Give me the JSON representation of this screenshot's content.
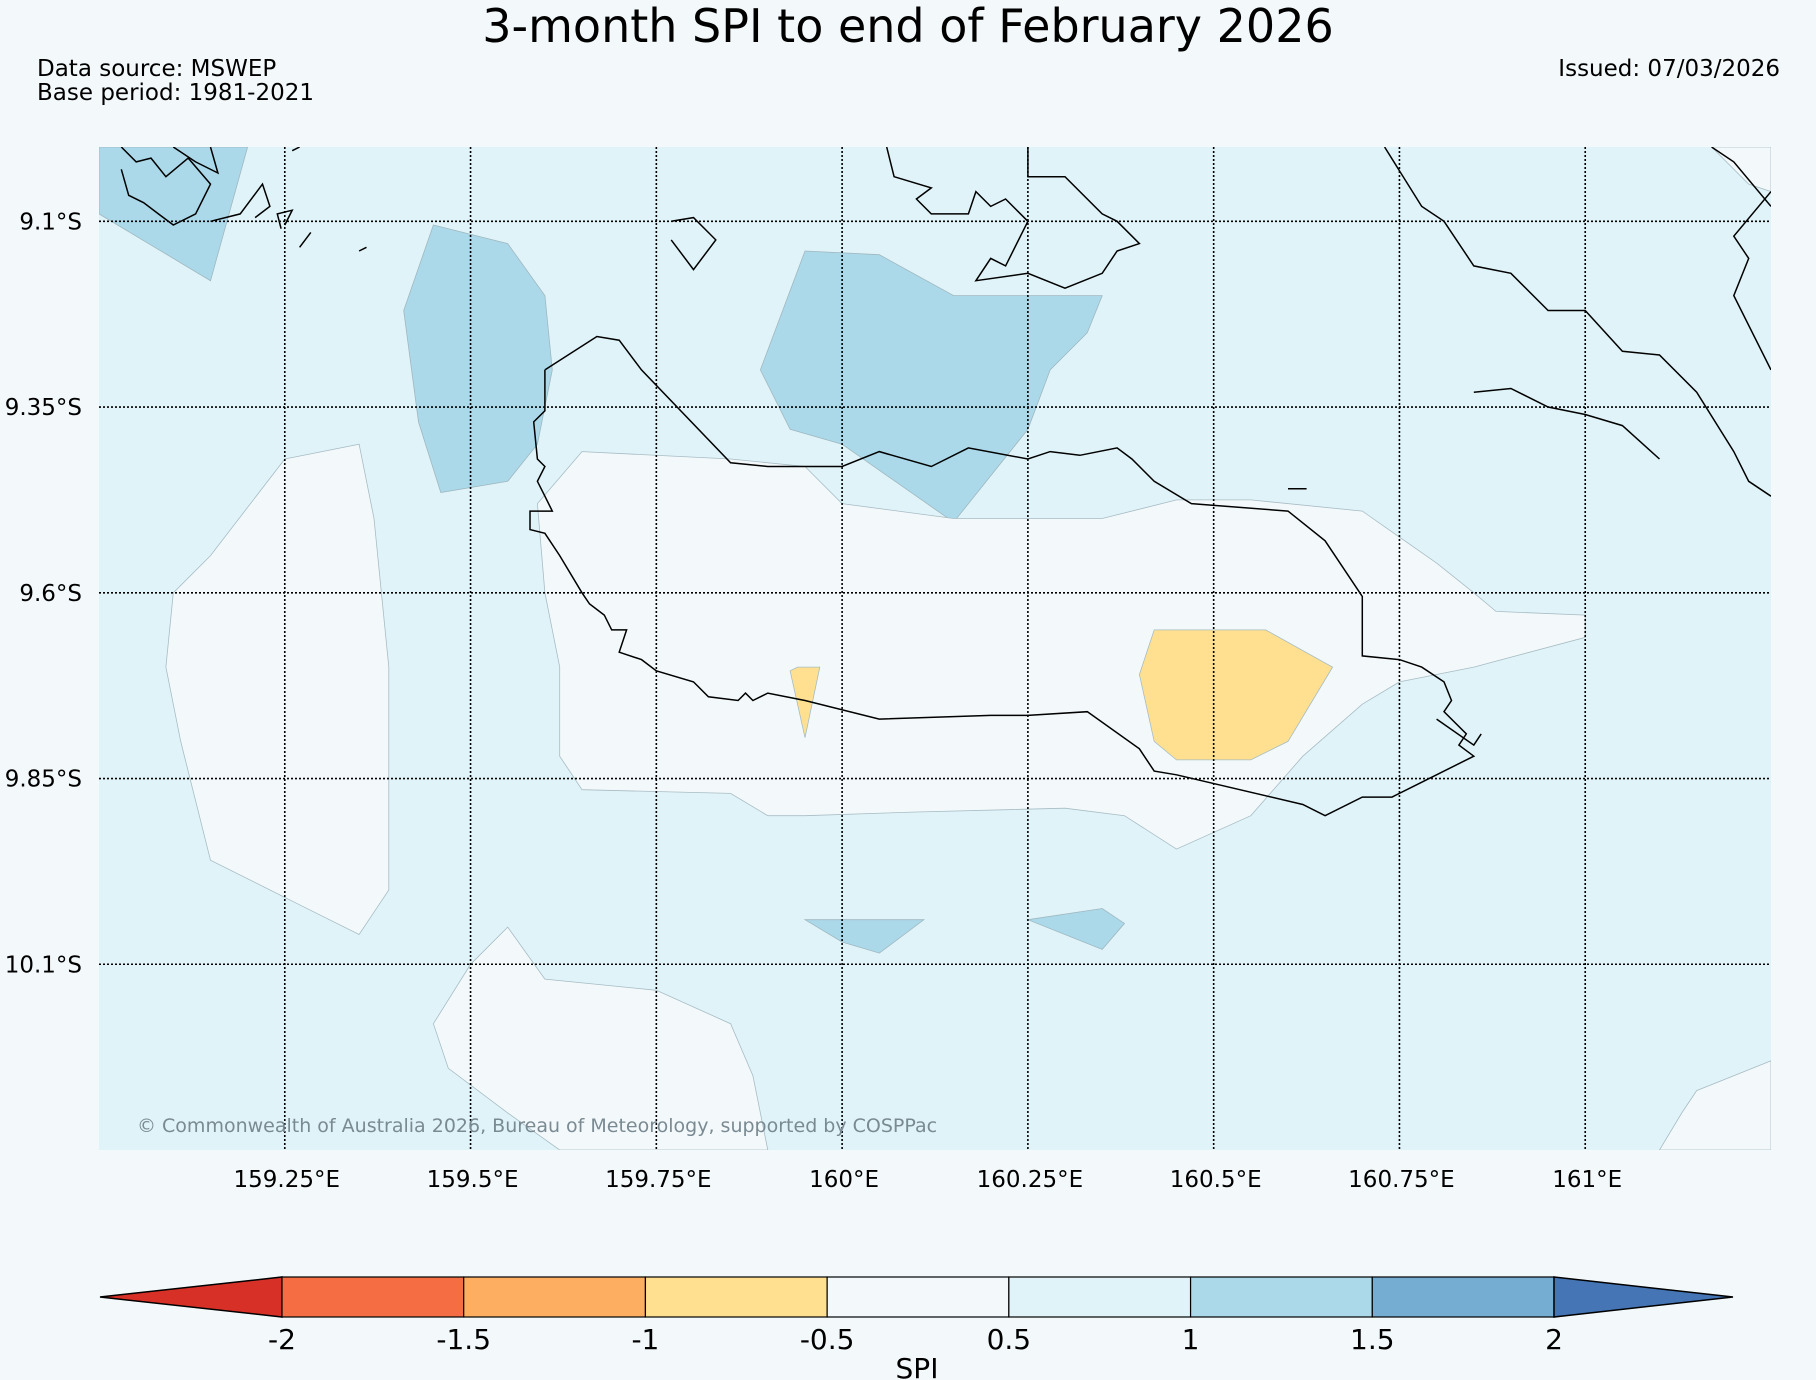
{
  "title": "3-month SPI to end of February 2026",
  "data_source": "Data source: MSWEP",
  "base_period": "Base period: 1981-2021",
  "issued": "Issued: 07/03/2026",
  "copyright": "© Commonwealth of Australia 2026, Bureau of Meteorology, supported by COSPPac",
  "map": {
    "extent": {
      "lon": [
        159.0,
        161.25
      ],
      "lat": [
        -10.35,
        -9.0
      ]
    },
    "lat_ticks": [
      -9.1,
      -9.35,
      -9.6,
      -9.85,
      -10.1
    ],
    "lat_labels": [
      "9.1°S",
      "9.35°S",
      "9.6°S",
      "9.85°S",
      "10.1°S"
    ],
    "lon_ticks": [
      159.25,
      159.5,
      159.75,
      160.0,
      160.25,
      160.5,
      160.75,
      161.0
    ],
    "lon_labels": [
      "159.25°E",
      "159.5°E",
      "159.75°E",
      "160°E",
      "160.25°E",
      "160.5°E",
      "160.75°E",
      "161°E"
    ],
    "spi_regions": [
      {
        "level": "1 to 1.5",
        "color": "#abd9e9",
        "coords": [
          [
            159.0,
            -9.0
          ],
          [
            159.2,
            -9.0
          ],
          [
            159.15,
            -9.18
          ],
          [
            159.0,
            -9.09
          ]
        ]
      },
      {
        "level": "1 to 1.5",
        "color": "#abd9e9",
        "coords": [
          [
            159.45,
            -9.105
          ],
          [
            159.55,
            -9.13
          ],
          [
            159.6,
            -9.2
          ],
          [
            159.61,
            -9.3
          ],
          [
            159.59,
            -9.4
          ],
          [
            159.55,
            -9.45
          ],
          [
            159.46,
            -9.465
          ],
          [
            159.43,
            -9.37
          ],
          [
            159.41,
            -9.22
          ]
        ]
      },
      {
        "level": "1 to 1.5",
        "color": "#abd9e9",
        "coords": [
          [
            159.95,
            -9.14
          ],
          [
            160.05,
            -9.145
          ],
          [
            160.15,
            -9.2
          ],
          [
            160.35,
            -9.2
          ],
          [
            160.33,
            -9.25
          ],
          [
            160.28,
            -9.3
          ],
          [
            160.25,
            -9.38
          ],
          [
            160.15,
            -9.505
          ],
          [
            160.1,
            -9.47
          ],
          [
            160.0,
            -9.4
          ],
          [
            159.93,
            -9.38
          ],
          [
            159.89,
            -9.3
          ]
        ]
      },
      {
        "level": "1 to 1.5",
        "color": "#abd9e9",
        "coords": [
          [
            159.95,
            -10.04
          ],
          [
            160.11,
            -10.04
          ],
          [
            160.05,
            -10.085
          ],
          [
            160.0,
            -10.07
          ]
        ]
      },
      {
        "level": "1 to 1.5",
        "color": "#abd9e9",
        "coords": [
          [
            160.25,
            -10.04
          ],
          [
            160.35,
            -10.025
          ],
          [
            160.38,
            -10.045
          ],
          [
            160.35,
            -10.08
          ]
        ]
      },
      {
        "level": "0.5 to 1 (outline)",
        "color": "#e0f3f8",
        "coords": [
          [
            159.0,
            -9.0
          ],
          [
            161.25,
            -9.0
          ],
          [
            161.25,
            -10.35
          ],
          [
            159.0,
            -10.35
          ]
        ]
      }
    ],
    "spi_low_regions": [
      {
        "level": "-0.5 to 0.5",
        "color": "#f3f9fb",
        "coords": [
          [
            159.25,
            -9.42
          ],
          [
            159.35,
            -9.4
          ],
          [
            159.37,
            -9.5
          ],
          [
            159.39,
            -9.7
          ],
          [
            159.39,
            -10.0
          ],
          [
            159.35,
            -10.06
          ],
          [
            159.27,
            -10.02
          ],
          [
            159.15,
            -9.96
          ],
          [
            159.11,
            -9.8
          ],
          [
            159.09,
            -9.7
          ],
          [
            159.1,
            -9.6
          ],
          [
            159.15,
            -9.55
          ]
        ]
      },
      {
        "level": "-0.5 to 0.5",
        "color": "#f3f9fb",
        "coords": [
          [
            159.65,
            -9.41
          ],
          [
            159.85,
            -9.42
          ],
          [
            159.95,
            -9.43
          ],
          [
            160.0,
            -9.48
          ],
          [
            160.15,
            -9.5
          ],
          [
            160.35,
            -9.5
          ],
          [
            160.45,
            -9.475
          ],
          [
            160.55,
            -9.475
          ],
          [
            160.7,
            -9.49
          ],
          [
            160.8,
            -9.56
          ],
          [
            160.85,
            -9.6
          ],
          [
            160.88,
            -9.625
          ],
          [
            161.0,
            -9.63
          ],
          [
            161.0,
            -9.66
          ],
          [
            160.85,
            -9.7
          ],
          [
            160.75,
            -9.72
          ],
          [
            160.7,
            -9.75
          ],
          [
            160.62,
            -9.82
          ],
          [
            160.55,
            -9.9
          ],
          [
            160.45,
            -9.945
          ],
          [
            160.38,
            -9.9
          ],
          [
            160.3,
            -9.89
          ],
          [
            160.1,
            -9.895
          ],
          [
            159.95,
            -9.9
          ],
          [
            159.9,
            -9.9
          ],
          [
            159.85,
            -9.87
          ],
          [
            159.65,
            -9.865
          ],
          [
            159.62,
            -9.82
          ],
          [
            159.62,
            -9.7
          ],
          [
            159.6,
            -9.6
          ],
          [
            159.59,
            -9.48
          ]
        ]
      },
      {
        "level": "-0.5 to 0.5",
        "color": "#f3f9fb",
        "coords": [
          [
            159.55,
            -10.05
          ],
          [
            159.6,
            -10.12
          ],
          [
            159.75,
            -10.135
          ],
          [
            159.85,
            -10.18
          ],
          [
            159.88,
            -10.25
          ],
          [
            159.9,
            -10.35
          ],
          [
            159.62,
            -10.35
          ],
          [
            159.55,
            -10.3
          ],
          [
            159.47,
            -10.24
          ],
          [
            159.45,
            -10.18
          ],
          [
            159.5,
            -10.1
          ]
        ]
      },
      {
        "level": "-0.5 to 0.5",
        "color": "#f3f9fb",
        "coords": [
          [
            161.1,
            -10.35
          ],
          [
            161.25,
            -10.35
          ],
          [
            161.25,
            -10.23
          ],
          [
            161.15,
            -10.27
          ],
          [
            161.13,
            -10.3
          ]
        ]
      },
      {
        "level": "-0.5 to 0.5",
        "color": "#f3f9fb",
        "coords": [
          [
            161.25,
            -9.0
          ],
          [
            161.2,
            -9.0
          ],
          [
            161.17,
            -9.0
          ],
          [
            161.22,
            -9.05
          ],
          [
            161.25,
            -9.06
          ]
        ]
      },
      {
        "level": "-1 to -0.5",
        "color": "#fee090",
        "coords": [
          [
            160.42,
            -9.65
          ],
          [
            160.57,
            -9.65
          ],
          [
            160.66,
            -9.7
          ],
          [
            160.6,
            -9.8
          ],
          [
            160.55,
            -9.825
          ],
          [
            160.45,
            -9.825
          ],
          [
            160.42,
            -9.8
          ],
          [
            160.4,
            -9.71
          ]
        ]
      },
      {
        "level": "-1 to -0.5",
        "color": "#fee090",
        "coords": [
          [
            159.94,
            -9.7
          ],
          [
            159.97,
            -9.7
          ],
          [
            159.95,
            -9.795
          ],
          [
            159.93,
            -9.705
          ]
        ]
      }
    ],
    "coastline_main": [
      [
        159.6,
        -9.3
      ],
      [
        159.67,
        -9.255
      ],
      [
        159.7,
        -9.26
      ],
      [
        159.73,
        -9.3
      ],
      [
        159.85,
        -9.425
      ],
      [
        159.9,
        -9.43
      ],
      [
        160.0,
        -9.43
      ],
      [
        160.05,
        -9.41
      ],
      [
        160.12,
        -9.43
      ],
      [
        160.17,
        -9.405
      ],
      [
        160.25,
        -9.42
      ],
      [
        160.28,
        -9.41
      ],
      [
        160.32,
        -9.415
      ],
      [
        160.37,
        -9.405
      ],
      [
        160.39,
        -9.42
      ],
      [
        160.42,
        -9.45
      ],
      [
        160.47,
        -9.48
      ],
      [
        160.6,
        -9.49
      ],
      [
        160.65,
        -9.53
      ],
      [
        160.7,
        -9.605
      ],
      [
        160.7,
        -9.685
      ],
      [
        160.75,
        -9.69
      ],
      [
        160.78,
        -9.7
      ],
      [
        160.81,
        -9.72
      ],
      [
        160.82,
        -9.745
      ],
      [
        160.81,
        -9.76
      ],
      [
        160.84,
        -9.79
      ],
      [
        160.83,
        -9.805
      ],
      [
        160.85,
        -9.82
      ],
      [
        160.77,
        -9.86
      ],
      [
        160.74,
        -9.875
      ],
      [
        160.7,
        -9.875
      ],
      [
        160.65,
        -9.9
      ],
      [
        160.62,
        -9.885
      ],
      [
        160.45,
        -9.845
      ],
      [
        160.42,
        -9.84
      ],
      [
        160.4,
        -9.81
      ],
      [
        160.33,
        -9.76
      ],
      [
        160.25,
        -9.765
      ],
      [
        160.2,
        -9.765
      ],
      [
        160.05,
        -9.77
      ],
      [
        159.95,
        -9.745
      ],
      [
        159.9,
        -9.735
      ],
      [
        159.88,
        -9.745
      ],
      [
        159.87,
        -9.735
      ],
      [
        159.86,
        -9.745
      ],
      [
        159.82,
        -9.74
      ],
      [
        159.8,
        -9.72
      ],
      [
        159.75,
        -9.705
      ],
      [
        159.73,
        -9.69
      ],
      [
        159.7,
        -9.68
      ],
      [
        159.71,
        -9.65
      ],
      [
        159.69,
        -9.65
      ],
      [
        159.68,
        -9.63
      ],
      [
        159.66,
        -9.615
      ],
      [
        159.65,
        -9.6
      ],
      [
        159.62,
        -9.55
      ],
      [
        159.6,
        -9.52
      ],
      [
        159.58,
        -9.515
      ],
      [
        159.58,
        -9.49
      ],
      [
        159.61,
        -9.49
      ],
      [
        159.6,
        -9.47
      ],
      [
        159.59,
        -9.45
      ],
      [
        159.6,
        -9.43
      ],
      [
        159.59,
        -9.42
      ],
      [
        159.585,
        -9.37
      ],
      [
        159.6,
        -9.355
      ],
      [
        159.6,
        -9.3
      ]
    ],
    "coastline_secondary": [
      [
        [
          159.03,
          -9.0
        ],
        [
          159.05,
          -9.02
        ],
        [
          159.07,
          -9.015
        ],
        [
          159.09,
          -9.04
        ],
        [
          159.12,
          -9.015
        ],
        [
          159.15,
          -9.05
        ],
        [
          159.13,
          -9.09
        ],
        [
          159.1,
          -9.105
        ],
        [
          159.08,
          -9.09
        ],
        [
          159.06,
          -9.075
        ],
        [
          159.04,
          -9.065
        ],
        [
          159.03,
          -9.03
        ]
      ],
      [
        [
          159.1,
          -9.0
        ],
        [
          159.13,
          -9.02
        ],
        [
          159.16,
          -9.035
        ],
        [
          159.15,
          -9.0
        ]
      ],
      [
        [
          159.15,
          -9.1
        ],
        [
          159.19,
          -9.09
        ],
        [
          159.22,
          -9.05
        ],
        [
          159.23,
          -9.08
        ],
        [
          159.21,
          -9.095
        ]
      ],
      [
        [
          159.26,
          -9.005
        ],
        [
          159.27,
          -9.0
        ]
      ],
      [
        [
          159.25,
          -9.105
        ],
        [
          159.26,
          -9.085
        ],
        [
          159.24,
          -9.09
        ],
        [
          159.245,
          -9.11
        ]
      ],
      [
        [
          159.27,
          -9.135
        ],
        [
          159.285,
          -9.115
        ]
      ],
      [
        [
          159.35,
          -9.14
        ],
        [
          159.36,
          -9.135
        ]
      ],
      [
        [
          159.77,
          -9.1
        ],
        [
          159.8,
          -9.095
        ],
        [
          159.83,
          -9.125
        ],
        [
          159.8,
          -9.165
        ],
        [
          159.77,
          -9.125
        ]
      ],
      [
        [
          160.06,
          -9.0
        ],
        [
          160.07,
          -9.04
        ],
        [
          160.12,
          -9.055
        ],
        [
          160.1,
          -9.07
        ],
        [
          160.12,
          -9.09
        ],
        [
          160.17,
          -9.09
        ],
        [
          160.18,
          -9.06
        ],
        [
          160.2,
          -9.08
        ],
        [
          160.22,
          -9.07
        ],
        [
          160.25,
          -9.1
        ],
        [
          160.22,
          -9.16
        ],
        [
          160.2,
          -9.15
        ],
        [
          160.18,
          -9.18
        ],
        [
          160.25,
          -9.17
        ],
        [
          160.3,
          -9.19
        ],
        [
          160.35,
          -9.17
        ],
        [
          160.37,
          -9.14
        ],
        [
          160.4,
          -9.13
        ],
        [
          160.37,
          -9.1
        ],
        [
          160.35,
          -9.09
        ],
        [
          160.3,
          -9.04
        ],
        [
          160.25,
          -9.04
        ],
        [
          160.25,
          -9.0
        ]
      ],
      [
        [
          160.73,
          -9.0
        ],
        [
          160.78,
          -9.08
        ],
        [
          160.81,
          -9.1
        ],
        [
          160.85,
          -9.16
        ],
        [
          160.9,
          -9.17
        ],
        [
          160.95,
          -9.22
        ],
        [
          161.0,
          -9.22
        ],
        [
          161.05,
          -9.275
        ],
        [
          161.1,
          -9.28
        ],
        [
          161.15,
          -9.33
        ],
        [
          161.2,
          -9.41
        ],
        [
          161.22,
          -9.45
        ],
        [
          161.25,
          -9.47
        ]
      ],
      [
        [
          161.17,
          -9.0
        ],
        [
          161.2,
          -9.02
        ],
        [
          161.25,
          -9.08
        ]
      ],
      [
        [
          161.25,
          -9.06
        ],
        [
          161.2,
          -9.12
        ],
        [
          161.22,
          -9.15
        ],
        [
          161.2,
          -9.2
        ],
        [
          161.25,
          -9.3
        ]
      ],
      [
        [
          160.85,
          -9.33
        ],
        [
          160.9,
          -9.325
        ],
        [
          160.95,
          -9.35
        ],
        [
          161.0,
          -9.36
        ],
        [
          161.05,
          -9.375
        ],
        [
          161.1,
          -9.42
        ]
      ],
      [
        [
          160.6,
          -9.46
        ],
        [
          160.625,
          -9.46
        ]
      ],
      [
        [
          160.8,
          -9.77
        ],
        [
          160.85,
          -9.805
        ],
        [
          160.86,
          -9.79
        ]
      ]
    ]
  },
  "colorbar": {
    "label": "SPI",
    "ticks": [
      "-2",
      "-1.5",
      "-1",
      "-0.5",
      "0.5",
      "1",
      "1.5",
      "2"
    ],
    "colors": [
      "#d73027",
      "#f46d43",
      "#fdae61",
      "#fee090",
      "#f3f9fb",
      "#e0f3f8",
      "#abd9e9",
      "#74add1",
      "#4575b4"
    ]
  }
}
